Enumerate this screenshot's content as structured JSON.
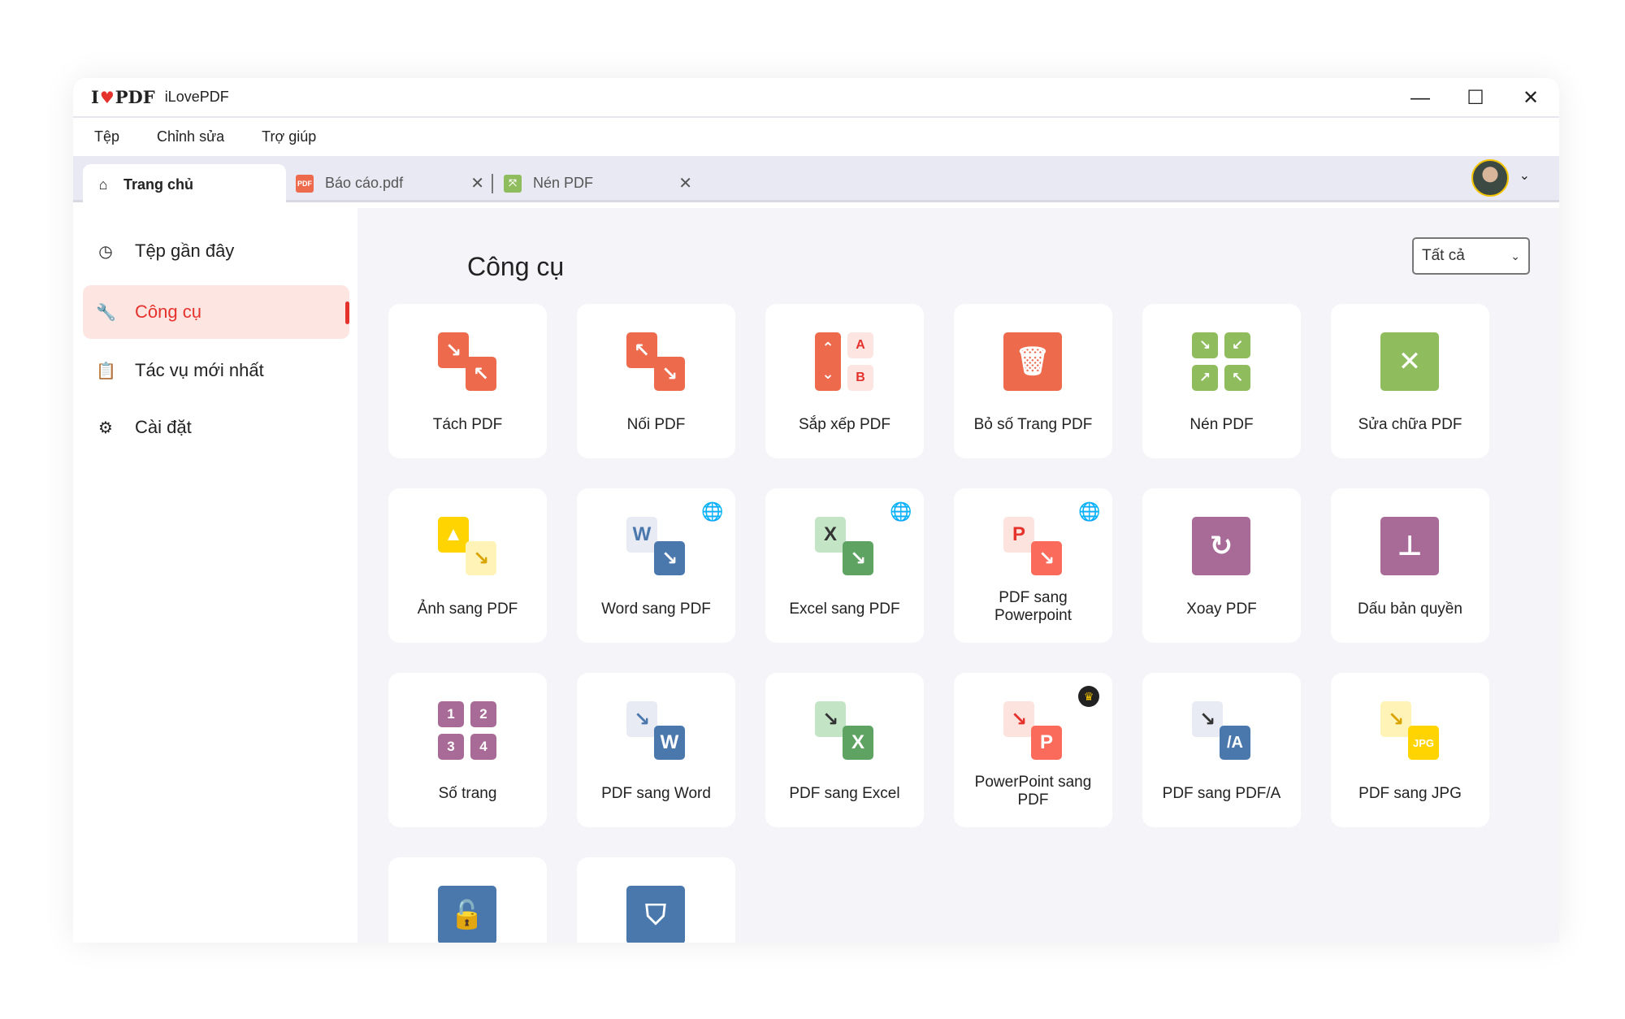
{
  "app": {
    "logo_text": "I♥PDF",
    "title": "iLovePDF"
  },
  "window_controls": {
    "minimize": "—",
    "maximize": "☐",
    "close": "✕"
  },
  "menu": [
    "Tệp",
    "Chỉnh sửa",
    "Trợ giúp"
  ],
  "tabs": [
    {
      "label": "Trang chủ",
      "icon": "home-icon",
      "active": true
    },
    {
      "label": "Báo cáo.pdf",
      "icon": "pdf-file-icon",
      "close": "✕"
    },
    {
      "label": "Nén PDF",
      "icon": "compress-icon",
      "close": "✕"
    }
  ],
  "user_menu": {
    "chevron": "⌄"
  },
  "sidebar": {
    "items": [
      {
        "label": "Tệp gần đây",
        "icon": "clock-icon",
        "glyph": "◷"
      },
      {
        "label": "Công cụ",
        "icon": "wrench-icon",
        "glyph": "🔧",
        "active": true
      },
      {
        "label": "Tác vụ mới nhất",
        "icon": "clipboard-icon",
        "glyph": "📋"
      },
      {
        "label": "Cài đặt",
        "icon": "gear-icon",
        "glyph": "⚙"
      }
    ]
  },
  "main": {
    "heading": "Công cụ",
    "filter": {
      "selected": "Tất cả",
      "chevron": "⌄"
    },
    "colors": {
      "red": "#ee6a4d",
      "green": "#8fbc5c",
      "purple": "#a86a96",
      "blue": "#4a78ad",
      "yellow": "#ffd400",
      "accent": "#e5322d"
    },
    "tools": [
      {
        "label": "Tách PDF",
        "icon": "split-pdf-icon",
        "type": "pair",
        "c1": "#ee6a4d",
        "c2": "#ee6a4d",
        "g1": "↘",
        "g2": "↖"
      },
      {
        "label": "Nối PDF",
        "icon": "merge-pdf-icon",
        "type": "pair",
        "c1": "#ee6a4d",
        "c2": "#ee6a4d",
        "g1": "↖",
        "g2": "↘"
      },
      {
        "label": "Sắp xếp PDF",
        "icon": "organize-pdf-icon",
        "type": "sort",
        "c1": "#ee6a4d",
        "c2": "#fde5e1",
        "g": [
          "⌃",
          "⌄",
          "A",
          "B"
        ]
      },
      {
        "label": "Bỏ số Trang PDF",
        "icon": "trash-icon",
        "type": "single",
        "c1": "#ee6a4d",
        "g1": "🗑"
      },
      {
        "label": "Nén PDF",
        "icon": "compress-pdf-icon",
        "type": "grid",
        "c1": "#8fbc5c",
        "g": [
          "↘",
          "↙",
          "↗",
          "↖"
        ]
      },
      {
        "label": "Sửa chữa PDF",
        "icon": "repair-tools-icon",
        "type": "single",
        "c1": "#8fbc5c",
        "g1": "✕"
      },
      {
        "label": "Ảnh sang PDF",
        "icon": "image-to-pdf-icon",
        "type": "pair",
        "c1": "#ffd400",
        "c2": "#fff3b8",
        "g1": "▲",
        "g2": "↘",
        "t2": "#d9a400"
      },
      {
        "label": "Word sang PDF",
        "icon": "word-to-pdf-icon",
        "type": "pair",
        "c1": "#e8eaf4",
        "c2": "#4a78ad",
        "g1": "W",
        "g2": "↘",
        "t1": "#4a78ad",
        "badge": "globe-icon",
        "badge_glyph": "🌐"
      },
      {
        "label": "Excel sang PDF",
        "icon": "excel-to-pdf-icon",
        "type": "pair",
        "c1": "#c4e4c6",
        "c2": "#5fa363",
        "g1": "X",
        "g2": "↘",
        "t1": "#333",
        "badge": "globe-icon",
        "badge_glyph": "🌐"
      },
      {
        "label": "PDF sang Powerpoint",
        "icon": "pdf-to-powerpoint-icon",
        "type": "pair",
        "c1": "#fde3de",
        "c2": "#fb6b5b",
        "g1": "P",
        "g2": "↘",
        "t1": "#e5322d",
        "badge": "globe-icon",
        "badge_glyph": "🌐"
      },
      {
        "label": "Xoay PDF",
        "icon": "rotate-pdf-icon",
        "type": "single",
        "c1": "#a86a96",
        "g1": "↻"
      },
      {
        "label": "Dấu bản quyền",
        "icon": "stamp-icon",
        "type": "single",
        "c1": "#a86a96",
        "g1": "⊥"
      },
      {
        "label": "Số trang",
        "icon": "page-numbers-icon",
        "type": "grid",
        "c1": "#a86a96",
        "g": [
          "1",
          "2",
          "3",
          "4"
        ]
      },
      {
        "label": "PDF sang Word",
        "icon": "pdf-to-word-icon",
        "type": "pair",
        "c1": "#e8eaf4",
        "c2": "#4a78ad",
        "g1": "↘",
        "g2": "W",
        "t1": "#4a78ad"
      },
      {
        "label": "PDF sang Excel",
        "icon": "pdf-to-excel-icon",
        "type": "pair",
        "c1": "#c4e4c6",
        "c2": "#5fa363",
        "g1": "↘",
        "g2": "X",
        "t1": "#333"
      },
      {
        "label": "PowerPoint sang PDF",
        "icon": "powerpoint-to-pdf-icon",
        "type": "pair",
        "c1": "#fde3de",
        "c2": "#fb6b5b",
        "g1": "↘",
        "g2": "P",
        "t1": "#e5322d",
        "badge": "crown-icon",
        "badge_glyph": "♛"
      },
      {
        "label": "PDF sang PDF/A",
        "icon": "pdf-to-pdfa-icon",
        "type": "pair",
        "c1": "#e8eaf4",
        "c2": "#4a78ad",
        "g1": "↘",
        "g2": "/A",
        "t1": "#333"
      },
      {
        "label": "PDF sang JPG",
        "icon": "pdf-to-jpg-icon",
        "type": "pair",
        "c1": "#fff3b8",
        "c2": "#ffd400",
        "g1": "↘",
        "g2": "JPG",
        "t1": "#d9a400",
        "small2": true
      },
      {
        "label": "",
        "icon": "unlock-icon",
        "type": "single",
        "c1": "#4a78ad",
        "g1": "🔓"
      },
      {
        "label": "",
        "icon": "protect-shield-icon",
        "type": "single",
        "c1": "#4a78ad",
        "g1": "⛉"
      }
    ]
  }
}
